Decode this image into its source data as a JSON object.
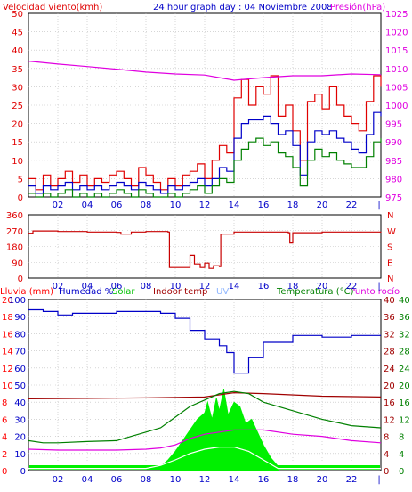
{
  "colors": {
    "background": "#ffffff",
    "frame": "#000000",
    "grid": "#bdbdbd",
    "wind_gust": "#e00000",
    "wind_avg": "#0000c8",
    "wind_low": "#008000",
    "pressure": "#e000e0",
    "direction": "#c80000",
    "rain_axis": "#ff0000",
    "humidity": "#0000c8",
    "solar": "#00f000",
    "indoor_temp": "#a00000",
    "uv": "#8fb6ff",
    "temperature": "#008000",
    "dewpoint": "#e000e0"
  },
  "chart_data": [
    {
      "type": "line",
      "title": "24 hour graph day : 04 Noviembre 2008",
      "ylabel_left": "Velocidad viento(kmh)",
      "ylabel_right": "Presión(hPa)",
      "ylim": [
        0,
        50
      ],
      "ylim_right": [
        975,
        1025
      ],
      "yticks": [
        "0",
        "5",
        "10",
        "15",
        "20",
        "25",
        "30",
        "35",
        "40",
        "45",
        "50"
      ],
      "yticks_right": [
        "975",
        "980",
        "985",
        "990",
        "995",
        "1000",
        "1005",
        "1010",
        "1015",
        "1020",
        "1025"
      ],
      "x_ticks": [
        "02",
        "04",
        "06",
        "08",
        "10",
        "12",
        "14",
        "16",
        "18",
        "20",
        "22"
      ],
      "x_end_tick": "|",
      "x_range_hours": [
        0,
        24
      ],
      "series": [
        {
          "key": "gust",
          "axis": "left",
          "hours": [
            0,
            0.5,
            1,
            1.5,
            2,
            2.5,
            3,
            3.5,
            4,
            4.5,
            5,
            5.5,
            6,
            6.5,
            7,
            7.5,
            8,
            8.5,
            9,
            9.5,
            10,
            10.5,
            11,
            11.5,
            12,
            12.5,
            13,
            13.5,
            14,
            14.5,
            15,
            15.5,
            16,
            16.5,
            17,
            17.5,
            18,
            18.5,
            19,
            19.5,
            20,
            20.5,
            21,
            21.5,
            22,
            22.5,
            23,
            23.5,
            24
          ],
          "values": [
            5,
            2,
            6,
            3,
            5,
            7,
            4,
            6,
            3,
            5,
            4,
            6,
            7,
            5,
            3,
            8,
            6,
            4,
            2,
            5,
            3,
            6,
            7,
            9,
            5,
            10,
            14,
            12,
            27,
            32,
            25,
            30,
            28,
            33,
            22,
            25,
            18,
            10,
            26,
            28,
            24,
            30,
            25,
            22,
            20,
            18,
            26,
            33,
            30
          ]
        },
        {
          "key": "average",
          "axis": "left",
          "hours": [
            0,
            0.5,
            1,
            1.5,
            2,
            2.5,
            3,
            3.5,
            4,
            4.5,
            5,
            5.5,
            6,
            6.5,
            7,
            7.5,
            8,
            8.5,
            9,
            9.5,
            10,
            10.5,
            11,
            11.5,
            12,
            12.5,
            13,
            13.5,
            14,
            14.5,
            15,
            15.5,
            16,
            16.5,
            17,
            17.5,
            18,
            18.5,
            19,
            19.5,
            20,
            20.5,
            21,
            21.5,
            22,
            22.5,
            23,
            23.5,
            24
          ],
          "values": [
            3,
            1,
            3,
            2,
            3,
            4,
            2,
            3,
            2,
            3,
            2,
            3,
            4,
            3,
            2,
            4,
            3,
            2,
            1,
            3,
            2,
            3,
            4,
            5,
            3,
            5,
            8,
            7,
            16,
            20,
            21,
            21,
            22,
            20,
            17,
            18,
            14,
            6,
            15,
            18,
            17,
            18,
            16,
            15,
            13,
            12,
            17,
            23,
            22
          ]
        },
        {
          "key": "low",
          "axis": "left",
          "hours": [
            0,
            0.5,
            1,
            1.5,
            2,
            2.5,
            3,
            3.5,
            4,
            4.5,
            5,
            5.5,
            6,
            6.5,
            7,
            7.5,
            8,
            8.5,
            9,
            9.5,
            10,
            10.5,
            11,
            11.5,
            12,
            12.5,
            13,
            13.5,
            14,
            14.5,
            15,
            15.5,
            16,
            16.5,
            17,
            17.5,
            18,
            18.5,
            19,
            19.5,
            20,
            20.5,
            21,
            21.5,
            22,
            22.5,
            23,
            23.5,
            24
          ],
          "values": [
            1,
            0,
            1,
            0,
            1,
            2,
            0,
            1,
            0,
            1,
            0,
            1,
            2,
            1,
            0,
            2,
            1,
            0,
            0,
            1,
            0,
            1,
            2,
            3,
            1,
            3,
            5,
            4,
            10,
            13,
            15,
            16,
            14,
            15,
            12,
            11,
            8,
            3,
            10,
            13,
            11,
            12,
            10,
            9,
            8,
            8,
            11,
            15,
            16
          ]
        },
        {
          "key": "pressure",
          "axis": "right",
          "hours": [
            0,
            2,
            4,
            6,
            8,
            10,
            12,
            13,
            14,
            16,
            18,
            20,
            22,
            24
          ],
          "values": [
            1012,
            1011.2,
            1010.5,
            1009.8,
            1009,
            1008.5,
            1008.2,
            1007.5,
            1006.8,
            1007.5,
            1008,
            1008,
            1008.5,
            1008.3
          ]
        }
      ]
    },
    {
      "type": "line",
      "ylabel_left": "",
      "ylim": [
        0,
        360
      ],
      "yticks": [
        "0",
        "90",
        "180",
        "270",
        "360"
      ],
      "yticks_right": [
        "N",
        "E",
        "S",
        "W",
        "N"
      ],
      "x_ticks": [
        "02",
        "04",
        "06",
        "08",
        "10",
        "12",
        "14",
        "16",
        "18",
        "20",
        "22"
      ],
      "x_end_tick": "|",
      "x_range_hours": [
        0,
        24
      ],
      "series": [
        {
          "key": "direction",
          "hours": [
            0,
            0.3,
            1,
            2,
            4,
            6,
            6.3,
            7,
            8,
            9,
            9.5,
            9.6,
            10.5,
            11,
            11.3,
            11.7,
            12,
            12.3,
            12.6,
            13,
            13.1,
            14,
            16,
            17.7,
            17.8,
            18,
            20,
            22,
            24
          ],
          "values": [
            255,
            268,
            268,
            265,
            262,
            260,
            250,
            262,
            265,
            265,
            262,
            60,
            60,
            130,
            80,
            60,
            85,
            55,
            70,
            65,
            250,
            262,
            262,
            258,
            200,
            258,
            262,
            262,
            260
          ]
        }
      ]
    },
    {
      "type": "line",
      "legend": [
        "Lluvia (mm)",
        "Humedad %",
        "Solar",
        "Indoor temp",
        "UV",
        "Temperatura (°C)",
        "Punto rocío"
      ],
      "yticks_rain": [
        "0",
        "2",
        "4",
        "6",
        "8",
        "10",
        "12",
        "14",
        "16",
        "18",
        "20"
      ],
      "yticks_humidity": [
        "0",
        "10",
        "20",
        "30",
        "40",
        "50",
        "60",
        "70",
        "80",
        "90",
        "100"
      ],
      "yticks_right_a": [
        "0",
        "4",
        "8",
        "12",
        "16",
        "20",
        "24",
        "28",
        "32",
        "36",
        "40"
      ],
      "yticks_right_b": [
        "0",
        "4",
        "8",
        "12",
        "16",
        "20",
        "24",
        "28",
        "32",
        "36",
        "40"
      ],
      "ylim_humidity": [
        0,
        100
      ],
      "ylim_temperature": [
        0,
        40
      ],
      "x_ticks": [
        "02",
        "04",
        "06",
        "08",
        "10",
        "12",
        "14",
        "16",
        "18",
        "20",
        "22"
      ],
      "x_end_tick": "|",
      "x_range_hours": [
        0,
        24
      ],
      "series": [
        {
          "key": "humidity",
          "hours": [
            0,
            1,
            2,
            3,
            4,
            6,
            8,
            9,
            10,
            11,
            12,
            13,
            13.5,
            14,
            15,
            16,
            18,
            20,
            22,
            24
          ],
          "values": [
            94,
            93,
            91,
            92,
            92,
            93,
            93,
            92,
            89,
            82,
            77,
            73,
            69,
            57,
            66,
            75,
            79,
            78,
            79,
            79
          ]
        },
        {
          "key": "indoor_temp",
          "hours": [
            0,
            4,
            8,
            12,
            14,
            16,
            20,
            24
          ],
          "values": [
            16.8,
            16.9,
            17,
            17.2,
            18.2,
            18,
            17.4,
            17.2
          ]
        },
        {
          "key": "temperature",
          "hours": [
            0,
            1,
            2,
            4,
            6,
            7,
            8,
            9,
            10,
            11,
            12,
            13,
            14,
            15,
            16,
            18,
            20,
            22,
            24
          ],
          "values": [
            7,
            6.5,
            6.5,
            6.8,
            7,
            8,
            9,
            10,
            12.5,
            15,
            16.5,
            18,
            18.5,
            18,
            16,
            14,
            12,
            10.5,
            10
          ]
        },
        {
          "key": "dewpoint",
          "hours": [
            0,
            2,
            4,
            6,
            8,
            9,
            10,
            11,
            12,
            13,
            14,
            16,
            18,
            20,
            22,
            24
          ],
          "values": [
            5,
            4.8,
            4.8,
            4.8,
            5,
            5.3,
            6,
            7.5,
            8.5,
            9,
            9.5,
            9.5,
            8.5,
            8,
            7,
            6.5
          ]
        },
        {
          "key": "uv_white",
          "hours": [
            0,
            8,
            9,
            10,
            11,
            12,
            13,
            14,
            15,
            16,
            17,
            24
          ],
          "values": [
            0.5,
            0.5,
            1.2,
            2.5,
            4,
            5,
            5.5,
            5.5,
            4.5,
            2.5,
            0.5,
            0.5
          ]
        },
        {
          "key": "solar",
          "hours": [
            9,
            9.5,
            10,
            10.5,
            11,
            11.5,
            12,
            12.2,
            12.5,
            12.8,
            13,
            13.3,
            13.6,
            14,
            14.4,
            14.8,
            15.2,
            15.6,
            16,
            16.5,
            17
          ],
          "values": [
            1,
            2.5,
            4.5,
            7,
            9.5,
            12,
            13.5,
            16,
            12,
            17,
            14,
            19,
            13,
            16,
            15,
            11,
            12,
            9,
            6,
            3,
            1
          ]
        }
      ]
    }
  ]
}
